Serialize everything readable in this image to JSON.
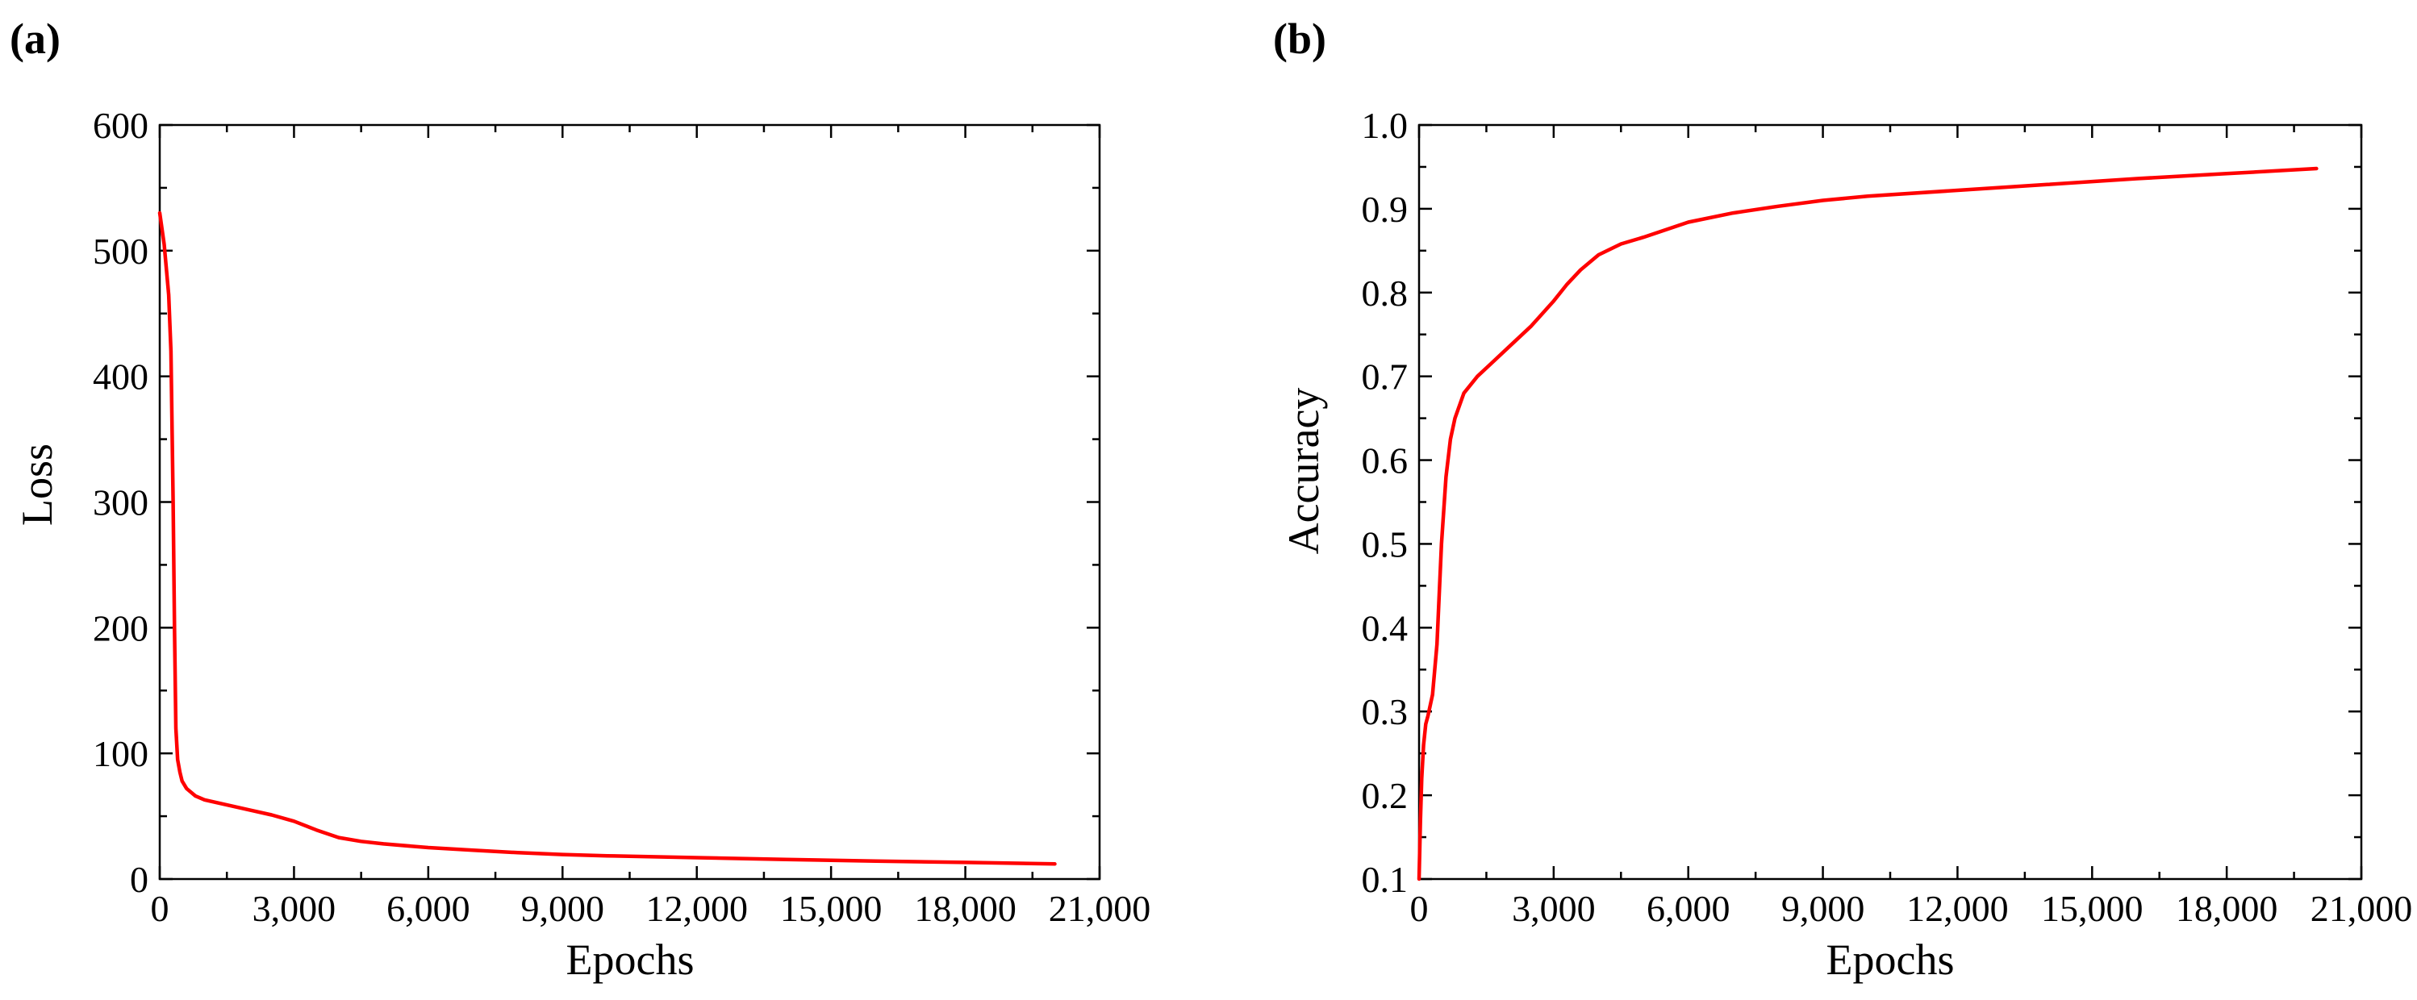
{
  "colors": {
    "series": "#ff0000",
    "axis": "#000000",
    "background": "#ffffff"
  },
  "chart_data": [
    {
      "type": "line",
      "panel_label": "(a)",
      "title": "",
      "xlabel": "Epochs",
      "ylabel": "Loss",
      "xlim": [
        0,
        21000
      ],
      "ylim": [
        0,
        600
      ],
      "xticks": [
        0,
        3000,
        6000,
        9000,
        12000,
        15000,
        18000,
        21000
      ],
      "xtick_labels": [
        "0",
        "3,000",
        "6,000",
        "9,000",
        "12,000",
        "15,000",
        "18,000",
        "21,000"
      ],
      "yticks": [
        0,
        100,
        200,
        300,
        400,
        500,
        600
      ],
      "ytick_labels": [
        "0",
        "100",
        "200",
        "300",
        "400",
        "500",
        "600"
      ],
      "grid": false,
      "series": [
        {
          "name": "Loss",
          "color": "#ff0000",
          "x": [
            0,
            100,
            200,
            250,
            300,
            330,
            360,
            400,
            450,
            500,
            600,
            800,
            1000,
            1500,
            2000,
            2500,
            3000,
            3500,
            4000,
            4500,
            5000,
            6000,
            7000,
            8000,
            9000,
            10000,
            12000,
            14000,
            16000,
            18000,
            20000
          ],
          "y": [
            530,
            505,
            465,
            420,
            300,
            200,
            120,
            95,
            85,
            78,
            72,
            66,
            63,
            59,
            55,
            51,
            46,
            39,
            33,
            30,
            28,
            25,
            23,
            21,
            19.5,
            18.5,
            17,
            15.5,
            14.3,
            13.2,
            12
          ]
        }
      ]
    },
    {
      "type": "line",
      "panel_label": "(b)",
      "title": "",
      "xlabel": "Epochs",
      "ylabel": "Accuracy",
      "xlim": [
        0,
        21000
      ],
      "ylim": [
        0.1,
        1.0
      ],
      "xticks": [
        0,
        3000,
        6000,
        9000,
        12000,
        15000,
        18000,
        21000
      ],
      "xtick_labels": [
        "0",
        "3,000",
        "6,000",
        "9,000",
        "12,000",
        "15,000",
        "18,000",
        "21,000"
      ],
      "yticks": [
        0.1,
        0.2,
        0.3,
        0.4,
        0.5,
        0.6,
        0.7,
        0.8,
        0.9,
        1.0
      ],
      "ytick_labels": [
        "0.1",
        "0.2",
        "0.3",
        "0.4",
        "0.5",
        "0.6",
        "0.7",
        "0.8",
        "0.9",
        "1.0"
      ],
      "grid": false,
      "series": [
        {
          "name": "Accuracy",
          "color": "#ff0000",
          "x": [
            0,
            30,
            60,
            100,
            150,
            200,
            300,
            400,
            500,
            600,
            700,
            800,
            1000,
            1300,
            1600,
            2000,
            2500,
            3000,
            3300,
            3600,
            4000,
            4500,
            5000,
            5500,
            6000,
            7000,
            8000,
            9000,
            10000,
            12000,
            14000,
            16000,
            18000,
            20000
          ],
          "y": [
            0.1,
            0.17,
            0.22,
            0.26,
            0.285,
            0.295,
            0.32,
            0.38,
            0.5,
            0.58,
            0.625,
            0.65,
            0.68,
            0.7,
            0.715,
            0.735,
            0.76,
            0.79,
            0.81,
            0.827,
            0.845,
            0.858,
            0.866,
            0.875,
            0.884,
            0.895,
            0.903,
            0.91,
            0.915,
            0.922,
            0.929,
            0.936,
            0.942,
            0.948
          ]
        }
      ]
    }
  ]
}
